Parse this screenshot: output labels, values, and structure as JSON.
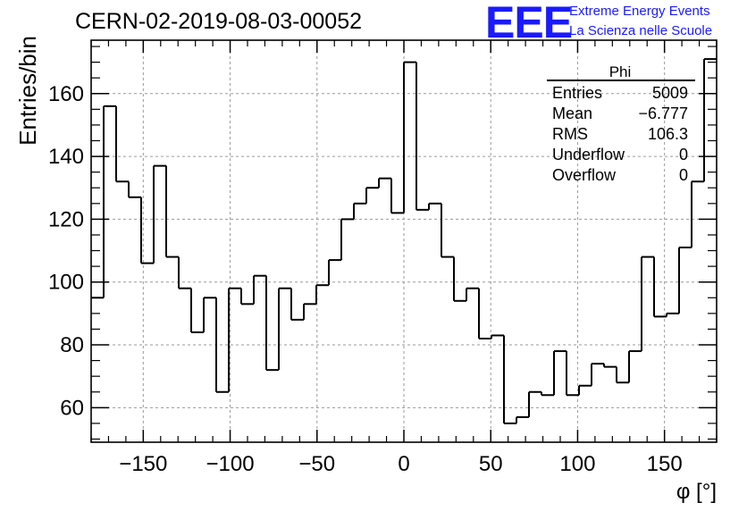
{
  "header": {
    "run_title": "CERN-02-2019-08-03-00052",
    "logo_text": "EEE",
    "logo_line1": "Extreme Energy Events",
    "logo_line2": "La Scienza nelle Scuole"
  },
  "colors": {
    "logo": "#1a1aff",
    "line": "#000000",
    "grid": "#9a9a9a"
  },
  "chart_data": {
    "type": "histogram",
    "title": "CERN-02-2019-08-03-00052",
    "xlabel": "φ [°]",
    "ylabel": "Entries/bin",
    "xlim": [
      -180,
      180
    ],
    "ylim": [
      49,
      177
    ],
    "bin_width": 7.2,
    "xticks": [
      -150,
      -100,
      -50,
      0,
      50,
      100,
      150
    ],
    "yticks": [
      60,
      80,
      100,
      120,
      140,
      160
    ],
    "grid": true,
    "values": [
      95,
      156,
      132,
      127,
      106,
      137,
      108,
      98,
      84,
      95,
      65,
      98,
      93,
      102,
      72,
      98,
      88,
      93,
      99,
      107,
      120,
      125,
      130,
      133,
      122,
      170,
      123,
      125,
      108,
      94,
      98,
      82,
      83,
      55,
      57,
      65,
      64,
      78,
      64,
      67,
      74,
      73,
      68,
      78,
      108,
      89,
      90,
      111,
      132,
      171
    ],
    "stats_box": {
      "title": "Phi",
      "rows": [
        {
          "label": "Entries",
          "value": "5009"
        },
        {
          "label": "Mean",
          "value": "−6.777"
        },
        {
          "label": "RMS",
          "value": "106.3"
        },
        {
          "label": "Underflow",
          "value": "0"
        },
        {
          "label": "Overflow",
          "value": "0"
        }
      ],
      "placement": "top-right"
    }
  }
}
